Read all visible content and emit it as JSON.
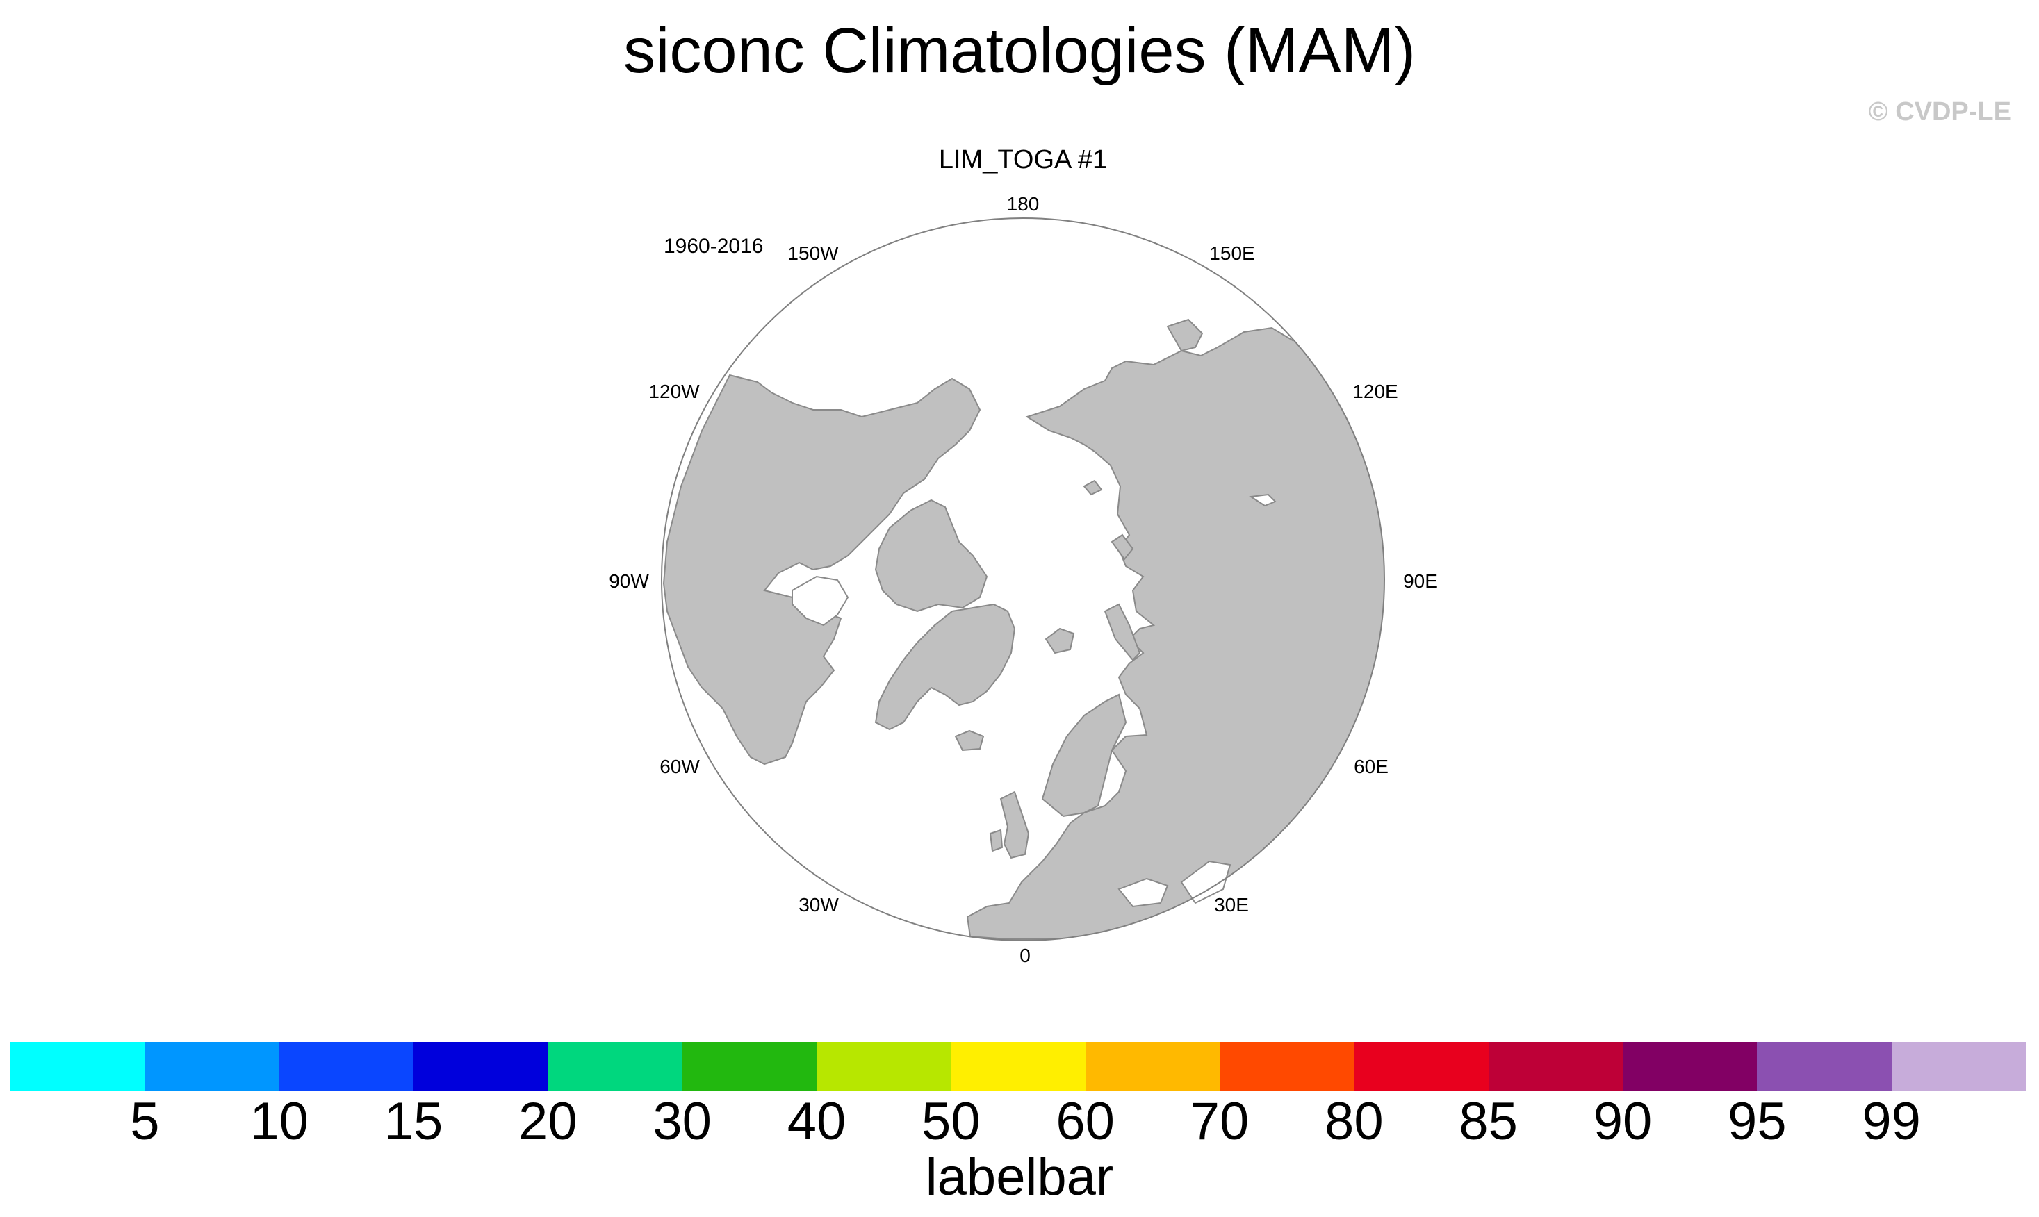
{
  "title": "siconc Climatologies (MAM)",
  "copyright": "© CVDP-LE",
  "panel": {
    "subtitle": "LIM_TOGA #1",
    "period": "1960-2016",
    "longitude_labels": [
      "180",
      "150E",
      "120E",
      "90E",
      "60E",
      "30E",
      "0",
      "30W",
      "60W",
      "90W",
      "120W",
      "150W"
    ]
  },
  "colors": {
    "land": "#c0c0c0",
    "ocean": "#ffffff",
    "outline": "#808080"
  },
  "labelbar": {
    "title": "labelbar",
    "ticks": [
      "5",
      "10",
      "15",
      "20",
      "30",
      "40",
      "50",
      "60",
      "70",
      "80",
      "85",
      "90",
      "95",
      "99"
    ],
    "colors": [
      "#00ffff",
      "#0096ff",
      "#0a46ff",
      "#0000dc",
      "#00d77e",
      "#22b80f",
      "#b7e700",
      "#ffef00",
      "#ffb900",
      "#ff4900",
      "#e8001e",
      "#be0037",
      "#820064",
      "#8b50b1",
      "#c7acda"
    ]
  }
}
